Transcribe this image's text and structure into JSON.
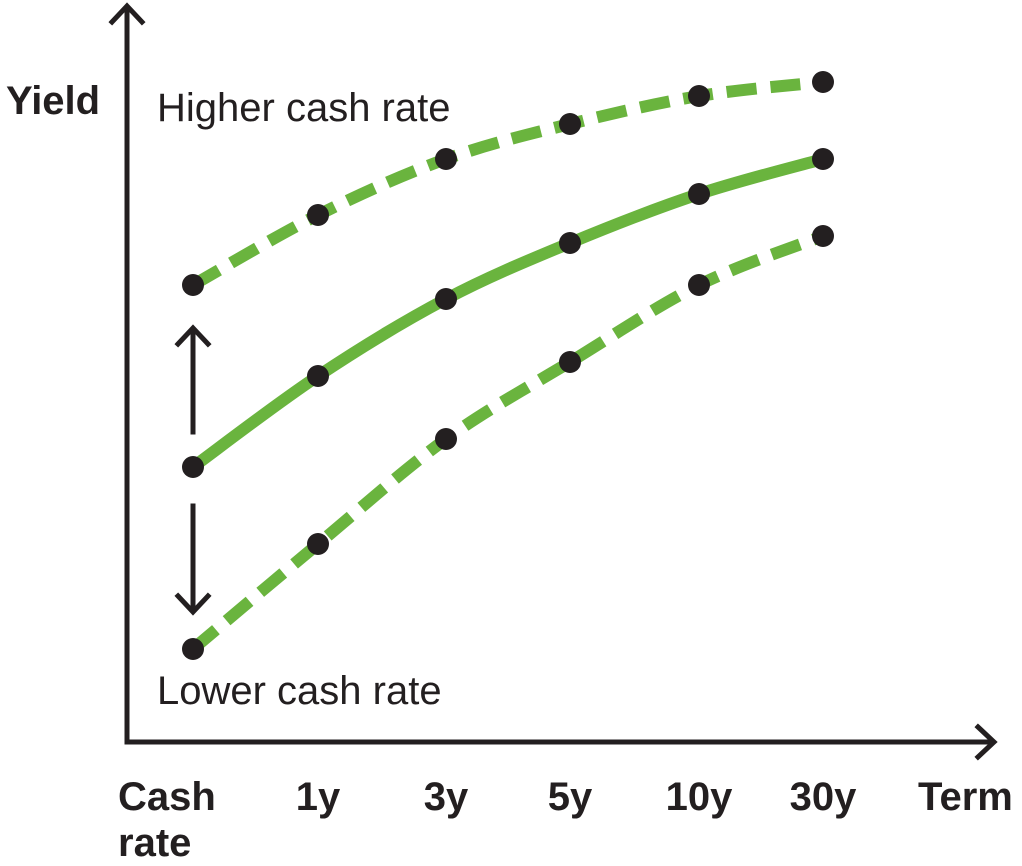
{
  "chart_data": {
    "type": "line",
    "y_label": "Yield",
    "x_label": "Term",
    "categories": [
      "Cash rate",
      "1y",
      "3y",
      "5y",
      "10y",
      "30y"
    ],
    "ylim": [
      0,
      100
    ],
    "series": [
      {
        "name": "Higher cash rate",
        "color": "#6ab43e",
        "dash": true,
        "values": [
          65,
          75,
          83,
          88,
          92,
          94
        ]
      },
      {
        "color": "#6ab43e",
        "dash": false,
        "values": [
          39,
          52,
          63,
          71,
          78,
          83
        ]
      },
      {
        "name": "Lower cash rate",
        "color": "#6ab43e",
        "dash": true,
        "values": [
          13,
          28,
          43,
          54,
          65,
          72
        ]
      }
    ],
    "marker_color": "#231f20"
  }
}
